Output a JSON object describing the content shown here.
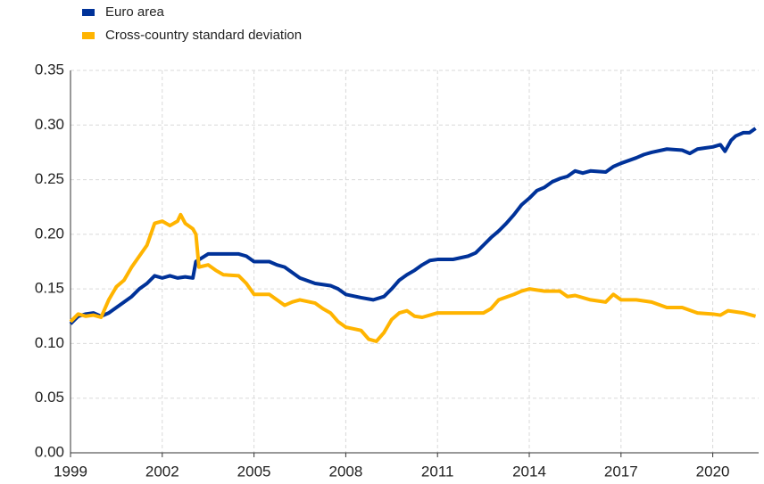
{
  "chart_data": {
    "type": "line",
    "xlim": [
      1999,
      2021.5
    ],
    "xticks": [
      1999,
      2002,
      2005,
      2008,
      2011,
      2014,
      2017,
      2020
    ],
    "ylim": [
      0,
      0.35
    ],
    "yticks": [
      {
        "value": 0,
        "label": "0.00"
      },
      0.05,
      {
        "value": 0.1,
        "label": "0.10"
      },
      0.15,
      {
        "value": 0.2,
        "label": "0.20"
      },
      0.25,
      {
        "value": 0.3,
        "label": "0.30"
      },
      0.35
    ],
    "grid": true,
    "legend": "top-left",
    "series": [
      {
        "name": "Euro area",
        "color": "#003299",
        "x": [
          1999.0,
          1999.25,
          1999.5,
          1999.75,
          2000.0,
          2000.25,
          2000.5,
          2000.75,
          2001.0,
          2001.25,
          2001.5,
          2001.75,
          2002.0,
          2002.25,
          2002.5,
          2002.75,
          2003.0,
          2003.1,
          2003.5,
          2004.0,
          2004.5,
          2004.75,
          2005.0,
          2005.5,
          2005.75,
          2006.0,
          2006.5,
          2007.0,
          2007.5,
          2007.75,
          2008.0,
          2008.5,
          2008.9,
          2009.25,
          2009.5,
          2009.75,
          2010.0,
          2010.25,
          2010.5,
          2010.75,
          2011.0,
          2011.5,
          2012.0,
          2012.25,
          2012.5,
          2012.75,
          2013.0,
          2013.25,
          2013.5,
          2013.75,
          2014.0,
          2014.25,
          2014.5,
          2014.75,
          2015.0,
          2015.25,
          2015.5,
          2015.75,
          2016.0,
          2016.5,
          2016.75,
          2017.0,
          2017.5,
          2017.75,
          2018.0,
          2018.5,
          2019.0,
          2019.25,
          2019.5,
          2019.75,
          2020.0,
          2020.25,
          2020.4,
          2020.6,
          2020.75,
          2021.0,
          2021.2,
          2021.4
        ],
        "values": [
          0.118,
          0.125,
          0.127,
          0.128,
          0.125,
          0.128,
          0.133,
          0.138,
          0.143,
          0.15,
          0.155,
          0.162,
          0.16,
          0.162,
          0.16,
          0.161,
          0.16,
          0.175,
          0.182,
          0.182,
          0.182,
          0.18,
          0.175,
          0.175,
          0.172,
          0.17,
          0.16,
          0.155,
          0.153,
          0.15,
          0.145,
          0.142,
          0.14,
          0.143,
          0.15,
          0.158,
          0.163,
          0.167,
          0.172,
          0.176,
          0.177,
          0.177,
          0.18,
          0.183,
          0.19,
          0.197,
          0.203,
          0.21,
          0.218,
          0.227,
          0.233,
          0.24,
          0.243,
          0.248,
          0.251,
          0.253,
          0.258,
          0.256,
          0.258,
          0.257,
          0.262,
          0.265,
          0.27,
          0.273,
          0.275,
          0.278,
          0.277,
          0.274,
          0.278,
          0.279,
          0.28,
          0.282,
          0.276,
          0.286,
          0.29,
          0.293,
          0.293,
          0.297
        ]
      },
      {
        "name": "Cross-country standard deviation",
        "color": "#ffb400",
        "x": [
          1999.0,
          1999.25,
          1999.5,
          1999.75,
          2000.0,
          2000.25,
          2000.5,
          2000.75,
          2001.0,
          2001.25,
          2001.5,
          2001.75,
          2002.0,
          2002.25,
          2002.5,
          2002.6,
          2002.75,
          2003.0,
          2003.1,
          2003.2,
          2003.5,
          2003.75,
          2004.0,
          2004.5,
          2004.75,
          2005.0,
          2005.5,
          2005.75,
          2006.0,
          2006.25,
          2006.5,
          2007.0,
          2007.25,
          2007.5,
          2007.75,
          2008.0,
          2008.5,
          2008.75,
          2009.0,
          2009.25,
          2009.5,
          2009.75,
          2010.0,
          2010.25,
          2010.5,
          2011.0,
          2011.5,
          2012.0,
          2012.5,
          2012.75,
          2013.0,
          2013.5,
          2013.75,
          2014.0,
          2014.5,
          2015.0,
          2015.25,
          2015.5,
          2016.0,
          2016.5,
          2016.75,
          2017.0,
          2017.5,
          2018.0,
          2018.5,
          2019.0,
          2019.5,
          2020.0,
          2020.25,
          2020.5,
          2021.0,
          2021.4
        ],
        "values": [
          0.12,
          0.127,
          0.125,
          0.126,
          0.124,
          0.14,
          0.152,
          0.158,
          0.17,
          0.18,
          0.19,
          0.21,
          0.212,
          0.208,
          0.212,
          0.218,
          0.21,
          0.205,
          0.2,
          0.17,
          0.172,
          0.167,
          0.163,
          0.162,
          0.155,
          0.145,
          0.145,
          0.14,
          0.135,
          0.138,
          0.14,
          0.137,
          0.132,
          0.128,
          0.12,
          0.115,
          0.112,
          0.104,
          0.102,
          0.11,
          0.122,
          0.128,
          0.13,
          0.125,
          0.124,
          0.128,
          0.128,
          0.128,
          0.128,
          0.132,
          0.14,
          0.145,
          0.148,
          0.15,
          0.148,
          0.148,
          0.143,
          0.144,
          0.14,
          0.138,
          0.145,
          0.14,
          0.14,
          0.138,
          0.133,
          0.133,
          0.128,
          0.127,
          0.126,
          0.13,
          0.128,
          0.125
        ]
      }
    ]
  }
}
